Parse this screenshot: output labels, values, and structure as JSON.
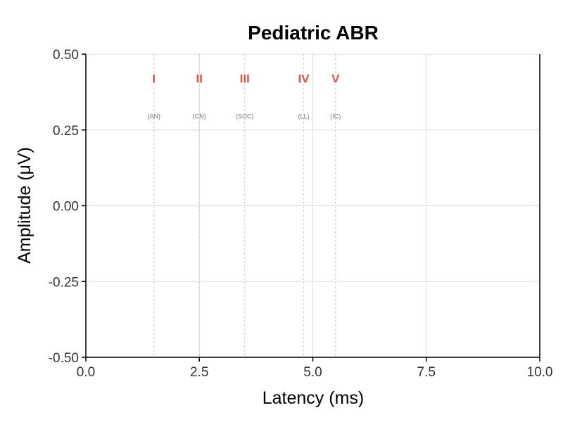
{
  "chart_data": {
    "type": "line",
    "title": "Pediatric ABR",
    "xlabel": "Latency (ms)",
    "ylabel": "Amplitude (μV)",
    "xlim": [
      0,
      10
    ],
    "ylim": [
      -0.5,
      0.5
    ],
    "x_ticks": [
      0,
      2.5,
      5,
      7.5,
      10
    ],
    "x_tick_labels": [
      "0.0",
      "2.5",
      "5.0",
      "7.5",
      "10.0"
    ],
    "y_ticks": [
      0.5,
      0.25,
      0,
      -0.25,
      -0.5
    ],
    "y_tick_labels": [
      "0.50",
      "0.25",
      "0.00",
      "-0.25",
      "-0.50"
    ],
    "grid": true,
    "series": [],
    "annotations": [
      {
        "x": 1.5,
        "label": "I",
        "sublabel": "(AN)"
      },
      {
        "x": 2.5,
        "label": "II",
        "sublabel": "(CN)"
      },
      {
        "x": 3.5,
        "label": "III",
        "sublabel": "(SOC)"
      },
      {
        "x": 4.8,
        "label": "IV",
        "sublabel": "(LL)"
      },
      {
        "x": 5.5,
        "label": "V",
        "sublabel": "(IC)"
      }
    ],
    "annotation_label_y": 0.42,
    "annotation_sublabel_y": 0.295,
    "colors": {
      "wave_label": "#d9534f",
      "grid": "#dddddd",
      "annotation_line": "#cccccc",
      "axis": "#000000"
    }
  }
}
